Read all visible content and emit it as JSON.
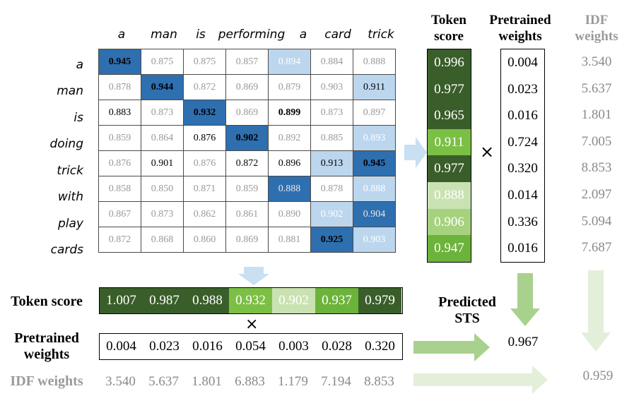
{
  "columns": [
    "a",
    "man",
    "is",
    "performing",
    "a",
    "card",
    "trick"
  ],
  "rows": [
    "a",
    "man",
    "is",
    "doing",
    "trick",
    "with",
    "play",
    "cards"
  ],
  "matrix": [
    [
      "0.945",
      "0.875",
      "0.875",
      "0.857",
      "0.894",
      "0.884",
      "0.888"
    ],
    [
      "0.878",
      "0.944",
      "0.872",
      "0.869",
      "0.879",
      "0.903",
      "0.911"
    ],
    [
      "0.883",
      "0.873",
      "0.932",
      "0.869",
      "0.899",
      "0.873",
      "0.897"
    ],
    [
      "0.859",
      "0.864",
      "0.876",
      "0.902",
      "0.892",
      "0.885",
      "0.893"
    ],
    [
      "0.876",
      "0.901",
      "0.876",
      "0.872",
      "0.896",
      "0.913",
      "0.945"
    ],
    [
      "0.858",
      "0.850",
      "0.871",
      "0.859",
      "0.888",
      "0.878",
      "0.888"
    ],
    [
      "0.867",
      "0.873",
      "0.862",
      "0.861",
      "0.890",
      "0.902",
      "0.904"
    ],
    [
      "0.872",
      "0.868",
      "0.860",
      "0.869",
      "0.881",
      "0.925",
      "0.903"
    ]
  ],
  "right_panel": {
    "token_score_title": "Token score",
    "pretrained_title": "Pretrained weights",
    "idf_title": "IDF weights",
    "token_scores": [
      "0.996",
      "0.977",
      "0.965",
      "0.911",
      "0.977",
      "0.888",
      "0.906",
      "0.947"
    ],
    "pretrained_weights": [
      "0.004",
      "0.023",
      "0.016",
      "0.724",
      "0.320",
      "0.014",
      "0.336",
      "0.016"
    ],
    "idf_weights": [
      "3.540",
      "5.637",
      "1.801",
      "7.005",
      "8.853",
      "2.097",
      "5.094",
      "7.687"
    ],
    "times": "×"
  },
  "bottom_panel": {
    "token_score_label": "Token score",
    "pretrained_label": "Pretrained weights",
    "idf_label": "IDF weights",
    "token_scores": [
      "1.007",
      "0.987",
      "0.988",
      "0.932",
      "0.902",
      "0.937",
      "0.979"
    ],
    "pretrained_weights": [
      "0.004",
      "0.023",
      "0.016",
      "0.054",
      "0.003",
      "0.028",
      "0.320"
    ],
    "idf_weights": [
      "3.540",
      "5.637",
      "1.801",
      "6.883",
      "1.179",
      "7.194",
      "8.853"
    ],
    "times": "×"
  },
  "predicted_sts_label": "Predicted STS",
  "predicted_pretrained": "0.967",
  "predicted_idf": "0.959"
}
